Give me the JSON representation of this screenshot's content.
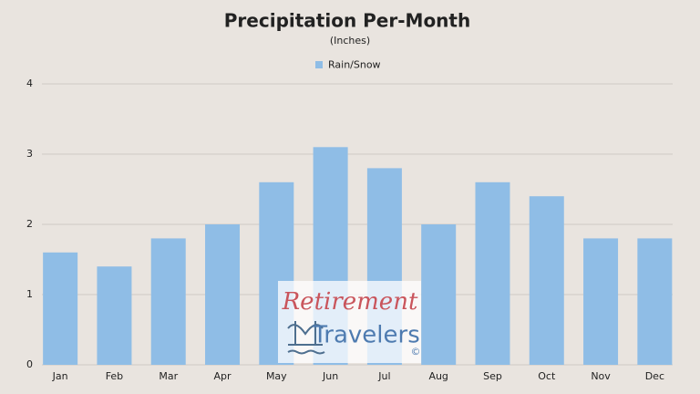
{
  "chart_data": {
    "type": "bar",
    "title": "Precipitation Per-Month",
    "subtitle": "(Inches)",
    "categories": [
      "Jan",
      "Feb",
      "Mar",
      "Apr",
      "May",
      "Jun",
      "Jul",
      "Aug",
      "Sep",
      "Oct",
      "Nov",
      "Dec"
    ],
    "series": [
      {
        "name": "Rain/Snow",
        "color": "#8fbde6",
        "values": [
          1.6,
          1.4,
          1.8,
          2.0,
          2.6,
          3.1,
          2.8,
          2.0,
          2.6,
          2.4,
          1.8,
          1.8
        ]
      }
    ],
    "ylim": [
      0,
      4
    ],
    "yticks": [
      0,
      1,
      2,
      3,
      4
    ],
    "grid": true,
    "legend": "top"
  },
  "watermark": {
    "line1": "Retirement",
    "line2": "Travelers",
    "mark": "©"
  }
}
